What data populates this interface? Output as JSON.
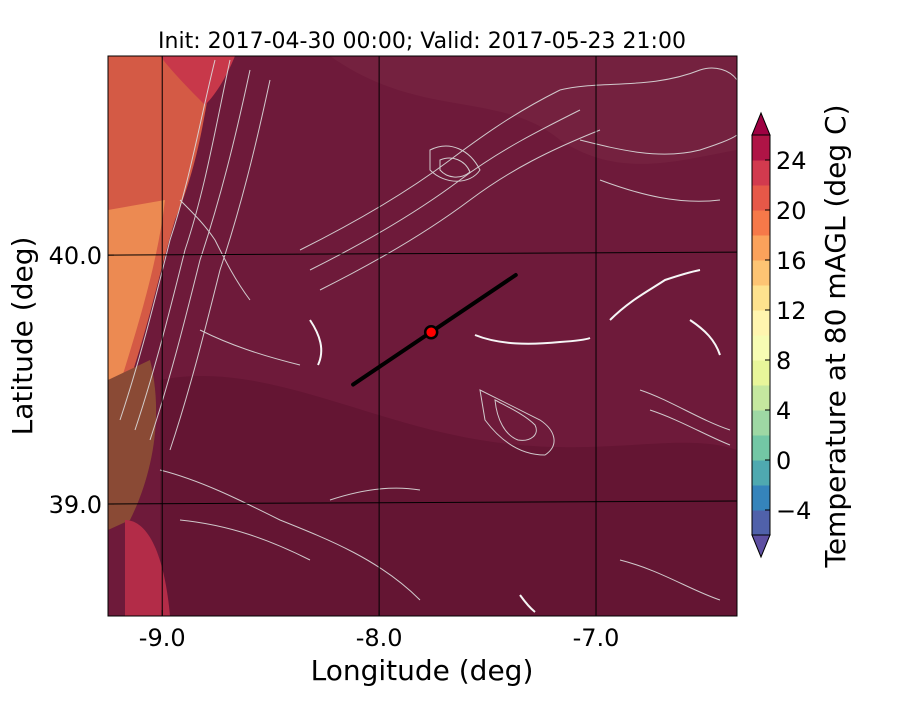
{
  "chart_data": {
    "type": "heatmap",
    "title": "Init: 2017-04-30 00:00; Valid: 2017-05-23 21:00",
    "xlabel": "Longitude (deg)",
    "ylabel": "Latitude (deg)",
    "xlim": [
      -9.25,
      -6.35
    ],
    "ylim": [
      38.55,
      40.8
    ],
    "xticks": [
      -9.0,
      -8.0,
      -7.0
    ],
    "xtick_labels": [
      "-9.0",
      "-8.0",
      "-7.0"
    ],
    "yticks": [
      39.0,
      40.0
    ],
    "ytick_labels": [
      "39.0",
      "40.0"
    ],
    "grid": true,
    "colorbar": {
      "label": "Temperature at 80 mAGL (deg C)",
      "min": -6,
      "max": 26,
      "step": 2,
      "extend": "both",
      "ticks": [
        -4,
        0,
        4,
        8,
        12,
        16,
        20,
        24
      ],
      "tick_labels": [
        "−4",
        "0",
        "4",
        "8",
        "12",
        "16",
        "20",
        "24"
      ],
      "colormap": "Spectral_r"
    },
    "transect": {
      "start": {
        "lon": -8.12,
        "lat": 39.48
      },
      "end": {
        "lon": -7.37,
        "lat": 39.92
      },
      "color": "#000000"
    },
    "marker": {
      "lon": -7.76,
      "lat": 39.69,
      "color": "#ff0000"
    },
    "colors": {
      "background_field": "#6b1736",
      "warm_coast": "#d95c43",
      "contour": "#e6e6e6",
      "terrain_high": "#d9b8a8"
    }
  }
}
